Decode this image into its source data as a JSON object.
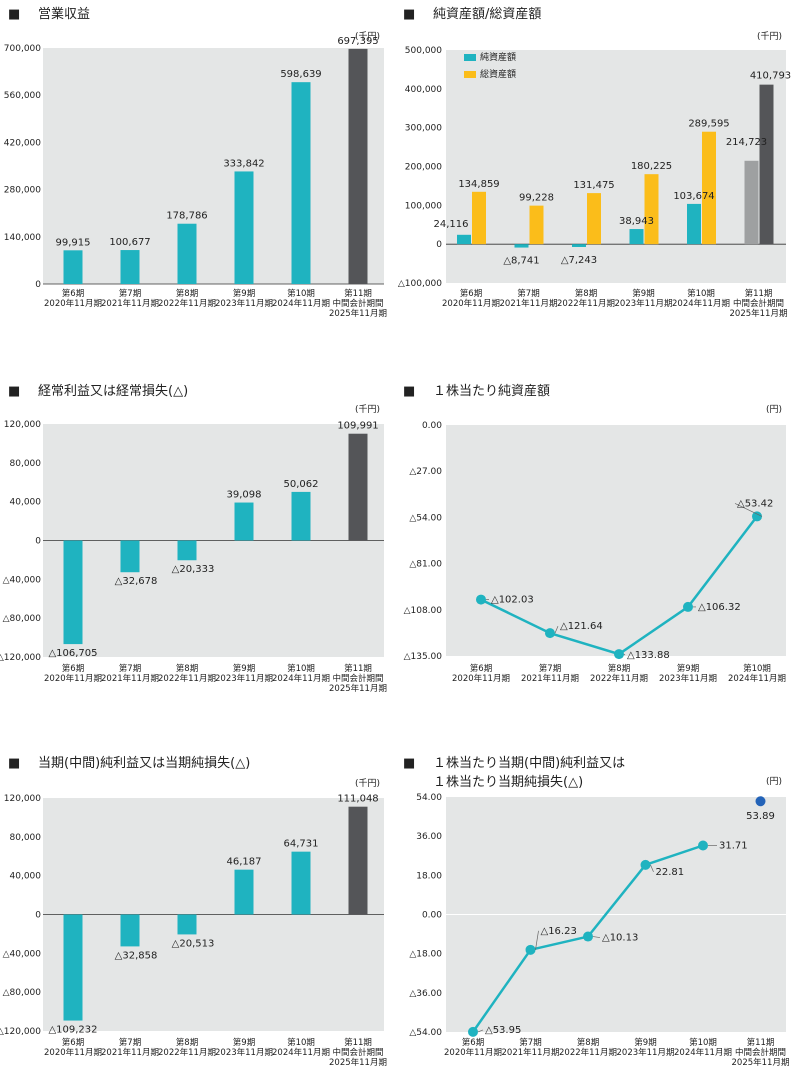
{
  "colors": {
    "bg": "#e4e6e6",
    "teal": "#1fb3c0",
    "gold": "#fbbd1a",
    "dark": "#545558",
    "gray": "#9ea0a1",
    "line": "#1fb3c0",
    "dot": "#2363b8"
  },
  "categories": [
    [
      "第6期",
      "2020年11月期"
    ],
    [
      "第7期",
      "2021年11月期"
    ],
    [
      "第8期",
      "2022年11月期"
    ],
    [
      "第9期",
      "2023年11月期"
    ],
    [
      "第10期",
      "2024年11月期"
    ],
    [
      "第11期",
      "中間会計期間",
      "2025年11月期"
    ]
  ],
  "chart_data": [
    {
      "id": "c1",
      "type": "bar",
      "marker": "■",
      "title": "営業収益",
      "unit": "(千円)",
      "ylim": [
        0,
        700000
      ],
      "ticks": [
        "0",
        "140,000",
        "280,000",
        "420,000",
        "560,000",
        "700,000"
      ],
      "tick_values": [
        0,
        140000,
        280000,
        420000,
        560000,
        700000
      ],
      "series": [
        {
          "name": "営業収益",
          "values": [
            99915,
            100677,
            178786,
            333842,
            598639,
            697395
          ]
        }
      ],
      "labels": [
        "99,915",
        "100,677",
        "178,786",
        "333,842",
        "598,639",
        "697,395"
      ]
    },
    {
      "id": "c2",
      "type": "bar",
      "marker": "■",
      "title": "純資産額/総資産額",
      "unit": "(千円)",
      "ylim": [
        -100000,
        500000
      ],
      "ticks": [
        "△100,000",
        "0",
        "100,000",
        "200,000",
        "300,000",
        "400,000",
        "500,000"
      ],
      "tick_values": [
        -100000,
        0,
        100000,
        200000,
        300000,
        400000,
        500000
      ],
      "legend": [
        "純資産額",
        "総資産額"
      ],
      "series": [
        {
          "name": "純資産額",
          "values": [
            24116,
            -8741,
            -7243,
            38943,
            103674,
            214723
          ]
        },
        {
          "name": "総資産額",
          "values": [
            134859,
            99228,
            131475,
            180225,
            289595,
            410793
          ]
        }
      ],
      "labels_net": [
        "24,116",
        "△8,741",
        "△7,243",
        "38,943",
        "103,674",
        "214,723"
      ],
      "labels_total": [
        "134,859",
        "99,228",
        "131,475",
        "180,225",
        "289,595",
        "410,793"
      ]
    },
    {
      "id": "c3",
      "type": "bar",
      "marker": "■",
      "title": "経常利益又は経常損失(△)",
      "unit": "(千円)",
      "ylim": [
        -120000,
        120000
      ],
      "ticks": [
        "△120,000",
        "△80,000",
        "△40,000",
        "0",
        "40,000",
        "80,000",
        "120,000"
      ],
      "tick_values": [
        -120000,
        -80000,
        -40000,
        0,
        40000,
        80000,
        120000
      ],
      "series": [
        {
          "name": "経常利益",
          "values": [
            -106705,
            -32678,
            -20333,
            39098,
            50062,
            109991
          ]
        }
      ],
      "labels": [
        "△106,705",
        "△32,678",
        "△20,333",
        "39,098",
        "50,062",
        "109,991"
      ]
    },
    {
      "id": "c4",
      "type": "line",
      "marker": "■",
      "title": "１株当たり純資産額",
      "unit": "(円)",
      "ylim": [
        -135,
        0
      ],
      "ticks": [
        "△135.00",
        "△108.00",
        "△81.00",
        "△54.00",
        "△27.00",
        "0.00"
      ],
      "tick_values": [
        -135,
        -108,
        -81,
        -54,
        -27,
        0
      ],
      "series": [
        {
          "name": "１株当たり純資産額",
          "values": [
            -102.03,
            -121.64,
            -133.88,
            -106.32,
            -53.42
          ]
        }
      ],
      "labels": [
        "△102.03",
        "△121.64",
        "△133.88",
        "△106.32",
        "△53.42"
      ]
    },
    {
      "id": "c5",
      "type": "bar",
      "marker": "■",
      "title": "当期(中間)純利益又は当期純損失(△)",
      "unit": "(千円)",
      "ylim": [
        -120000,
        120000
      ],
      "ticks": [
        "△120,000",
        "△80,000",
        "△40,000",
        "0",
        "40,000",
        "80,000",
        "120,000"
      ],
      "tick_values": [
        -120000,
        -80000,
        -40000,
        0,
        40000,
        80000,
        120000
      ],
      "series": [
        {
          "name": "純利益",
          "values": [
            -109232,
            -32858,
            -20513,
            46187,
            64731,
            111048
          ]
        }
      ],
      "labels": [
        "△109,232",
        "△32,858",
        "△20,513",
        "46,187",
        "64,731",
        "111,048"
      ]
    },
    {
      "id": "c6",
      "type": "line",
      "marker": "■",
      "title_lines": [
        "１株当たり当期(中間)純利益又は",
        "１株当たり当期純損失(△)"
      ],
      "unit": "(円)",
      "ylim": [
        -54,
        54
      ],
      "ticks": [
        "△54.00",
        "△36.00",
        "△18.00",
        "0.00",
        "18.00",
        "36.00",
        "54.00"
      ],
      "tick_values": [
        -54,
        -36,
        -18,
        0,
        18,
        36,
        54
      ],
      "series": [
        {
          "name": "１株当たり純利益",
          "values": [
            -53.95,
            -16.23,
            -10.13,
            22.81,
            31.71
          ]
        }
      ],
      "labels": [
        "△53.95",
        "△16.23",
        "△10.13",
        "22.81",
        "31.71"
      ],
      "interim": {
        "value": 53.89,
        "label": "53.89"
      }
    }
  ]
}
